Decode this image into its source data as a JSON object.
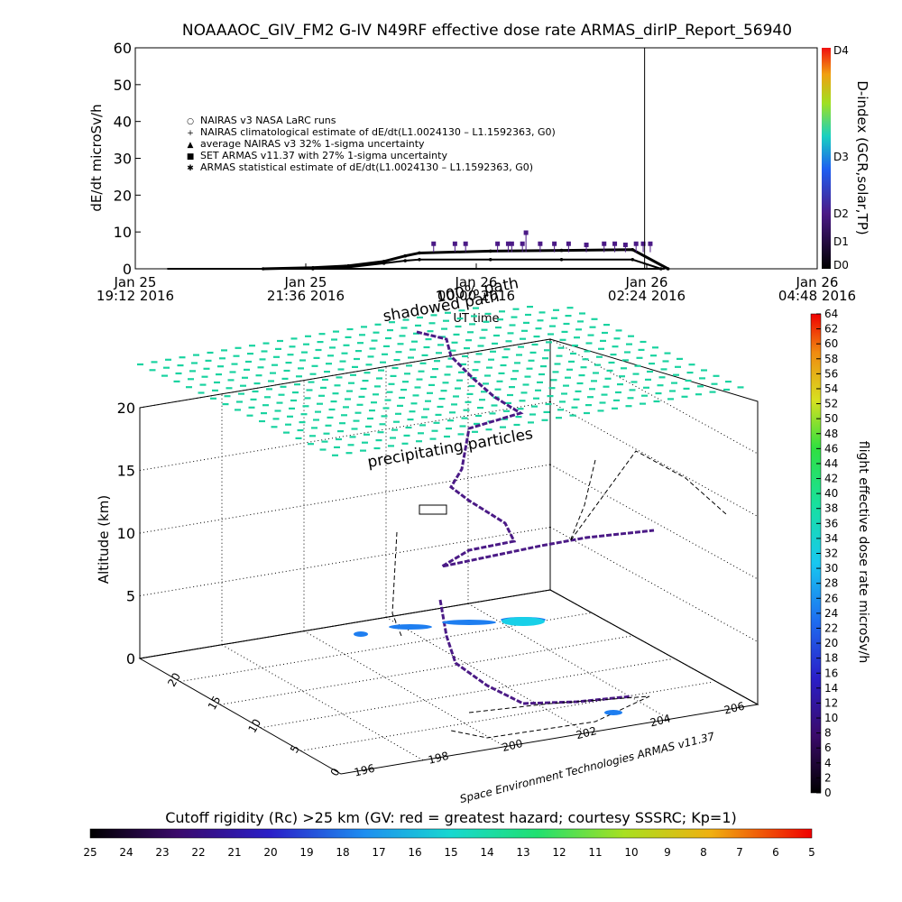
{
  "colors": {
    "accent_purple": "#4b1a86",
    "accent_cyan": "#19d3a0",
    "background": "#ffffff"
  },
  "chart_data": [
    {
      "type": "scatter",
      "title": "NOAAAOC_GIV_FM2 G-IV    N49RF   effective dose rate ARMAS_dirIP_Report_56940",
      "xlabel": "UT time",
      "ylabel": "dE/dt microSv/h",
      "right_axis_label": "D-index (GCR,solar,TP)",
      "y_ticks": [
        "0",
        "10",
        "20",
        "30",
        "40",
        "50",
        "60"
      ],
      "ylim": [
        0,
        60
      ],
      "right_ticks": [
        "D0",
        "D1",
        "D2",
        "D3",
        "D4"
      ],
      "x_ticks": [
        {
          "l1": "Jan 25",
          "l2": "19:12 2016"
        },
        {
          "l1": "Jan 25",
          "l2": "21:36 2016"
        },
        {
          "l1": "Jan 26",
          "l2": "00:00 2016"
        },
        {
          "l1": "Jan 26",
          "l2": "02:24 2016"
        },
        {
          "l1": "Jan 26",
          "l2": "04:48 2016"
        }
      ],
      "legend": [
        "NAIRAS v3 NASA LaRC runs",
        "NAIRAS climatological estimate of dE/dt(L1.0024130 – L1.1592363, G0)",
        "average NAIRAS v3 32% 1-sigma uncertainty",
        "SET ARMAS v11.37 with 27% 1-sigma uncertainty",
        "ARMAS statistical estimate of dE/dt(L1.0024130 – L1.1592363, G0)"
      ],
      "legend_placement": "top-left",
      "vertical_marker_hours": 7.17,
      "series": [
        {
          "name": "NAIRAS climatological estimate of dE/dt(L1.0024130 – L1.1592363, G0)",
          "x_hours": [
            1.8,
            2.5,
            3.0,
            3.5,
            3.8,
            4.0,
            5.0,
            6.0,
            7.0,
            7.5
          ],
          "values": [
            0.0,
            0.3,
            0.8,
            2.0,
            3.5,
            4.3,
            4.8,
            5.0,
            5.2,
            0.0
          ]
        },
        {
          "name": "ARMAS statistical estimate of dE/dt(L1.0024130 – L1.1592363, G0)",
          "x_hours": [
            2.5,
            3.0,
            3.5,
            3.8,
            4.0,
            5.0,
            6.0,
            7.0,
            7.4
          ],
          "values": [
            0.0,
            0.4,
            1.5,
            2.2,
            2.5,
            2.5,
            2.5,
            2.5,
            0.0
          ]
        },
        {
          "name": "SET ARMAS v11.37 with 27% 1-sigma uncertainty",
          "x_hours": [
            4.2,
            4.5,
            4.65,
            5.1,
            5.25,
            5.3,
            5.45,
            5.5,
            5.7,
            5.9,
            6.1,
            6.35,
            6.6,
            6.75,
            6.9,
            7.05,
            7.15,
            7.25
          ],
          "values": [
            6.8,
            6.8,
            6.8,
            6.8,
            6.8,
            6.8,
            6.8,
            9.8,
            6.8,
            6.8,
            6.8,
            6.5,
            6.8,
            6.8,
            6.5,
            6.8,
            6.8,
            6.8
          ]
        }
      ]
    },
    {
      "type": "scatter",
      "subtitle_a": "shadowed path",
      "subtitle_b": "100% path",
      "annotation": "precipitating particles",
      "zlabel": "Altitude (km)",
      "z_ticks": [
        "0",
        "5",
        "10",
        "15",
        "20"
      ],
      "zlim": [
        0,
        20
      ],
      "x_ticks": [
        "196",
        "198",
        "200",
        "202",
        "204",
        "206"
      ],
      "y_ticks": [
        "0",
        "5",
        "10",
        "15",
        "20"
      ],
      "credit": "Space Environment Technologies ARMAS v11.37",
      "colorbar_label": "flight effective dose rate microSv/h",
      "colorbar_ticks": [
        "0",
        "2",
        "4",
        "6",
        "8",
        "10",
        "12",
        "14",
        "16",
        "18",
        "20",
        "22",
        "24",
        "26",
        "28",
        "30",
        "32",
        "34",
        "36",
        "38",
        "40",
        "42",
        "44",
        "46",
        "48",
        "50",
        "52",
        "54",
        "56",
        "58",
        "60",
        "62",
        "64"
      ],
      "grid": true
    },
    {
      "type": "heatmap",
      "label": "Cutoff rigidity (Rc) >25 km (GV: red = greatest hazard; courtesy SSSRC; Kp=1)",
      "ticks": [
        "25",
        "24",
        "23",
        "22",
        "21",
        "20",
        "19",
        "18",
        "17",
        "16",
        "15",
        "14",
        "13",
        "12",
        "11",
        "10",
        "9",
        "8",
        "7",
        "6",
        "5"
      ]
    }
  ]
}
